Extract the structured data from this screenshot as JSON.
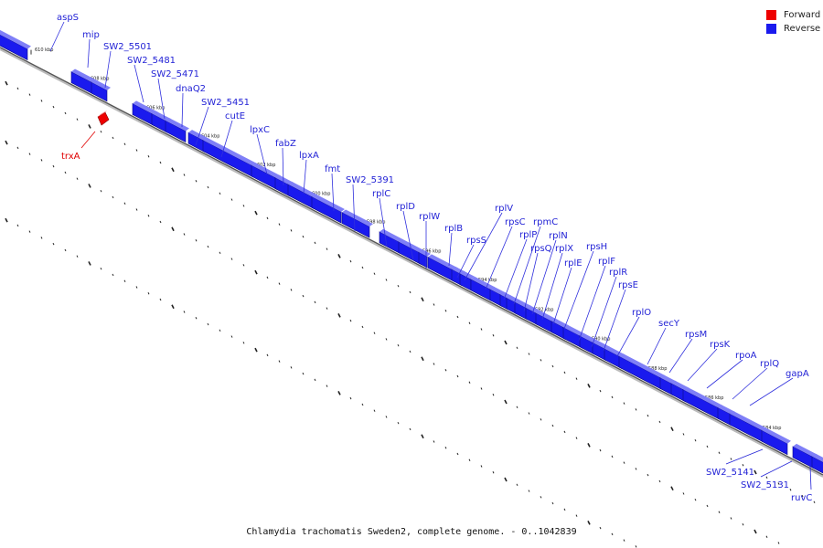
{
  "caption": "Chlamydia trachomatis Sweden2, complete genome. - 0..1042839",
  "legend": [
    {
      "label": "Forward",
      "color": "#ee0000"
    },
    {
      "label": "Reverse",
      "color": "#1a1aee"
    }
  ],
  "axis": {
    "unit": "kbp",
    "ticks": [
      "610 kbp",
      "608 kbp",
      "606 kbp",
      "604 kbp",
      "602 kbp",
      "600 kbp",
      "598 kbp",
      "596 kbp",
      "594 kbp",
      "592 kbp",
      "590 kbp",
      "588 kbp",
      "586 kbp",
      "584 kbp"
    ]
  },
  "genes": [
    "aspS",
    "mip",
    "SW2_5501",
    "SW2_5481",
    "SW2_5471",
    "dnaQ2",
    "SW2_5451",
    "cutE",
    "lpxC",
    "fabZ",
    "lpxA",
    "fmt",
    "SW2_5391",
    "rplC",
    "rplD",
    "rplW",
    "rplB",
    "rpsS",
    "rplV",
    "rpsC",
    "rplP",
    "rpmC",
    "rpsQ",
    "rplN",
    "rplX",
    "rplE",
    "rpsH",
    "rplF",
    "rplR",
    "rpsE",
    "rplO",
    "secY",
    "rpsM",
    "rpsK",
    "rpoA",
    "rplQ",
    "gapA",
    "trxA",
    "SW2_5141",
    "SW2_5131",
    "ruvC"
  ]
}
